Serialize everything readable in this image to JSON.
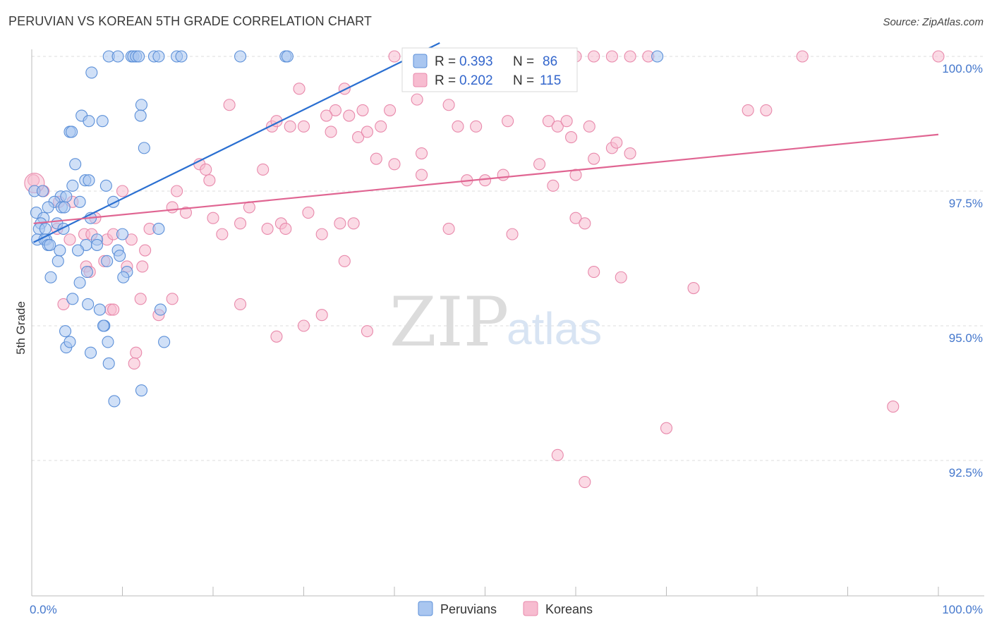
{
  "title": "PERUVIAN VS KOREAN 5TH GRADE CORRELATION CHART",
  "source": "Source: ZipAtlas.com",
  "watermark": {
    "zip": "ZIP",
    "atlas": "atlas"
  },
  "colors": {
    "peruvians_fill": "#a9c6f0",
    "peruvians_stroke": "#5b8fd8",
    "peruvians_line": "#2a6fd1",
    "koreans_fill": "#f7bcd0",
    "koreans_stroke": "#e889ab",
    "koreans_line": "#e06592",
    "grid": "#dddddd",
    "tick_text": "#4477cc"
  },
  "chart_data": {
    "type": "scatter",
    "title": "PERUVIAN VS KOREAN 5TH GRADE CORRELATION CHART",
    "xlabel": "",
    "ylabel": "5th Grade",
    "xlim": [
      0,
      100
    ],
    "ylim": [
      90.2,
      100.45
    ],
    "x_tick_labels": [
      {
        "value": 0,
        "label": "0.0%"
      },
      {
        "value": 100,
        "label": "100.0%"
      }
    ],
    "y_ticks": [
      {
        "value": 100,
        "label": "100.0%"
      },
      {
        "value": 97.5,
        "label": "97.5%"
      },
      {
        "value": 95,
        "label": "95.0%"
      },
      {
        "value": 92.5,
        "label": "92.5%"
      }
    ],
    "grid": true,
    "legend": {
      "placement": "top-center",
      "rows": [
        {
          "r_label": "R = ",
          "r_value": "0.393",
          "n_label": "N = ",
          "n_value": "86"
        },
        {
          "r_label": "R = ",
          "r_value": "0.202",
          "n_label": "N = ",
          "n_value": "115"
        }
      ]
    },
    "bottom_legend": [
      "Peruvians",
      "Koreans"
    ],
    "series": [
      {
        "name": "Peruvians",
        "trend": {
          "x0": 0.2,
          "y0": 96.55,
          "x1": 45,
          "y1": 100.25
        },
        "points": [
          [
            8.5,
            100
          ],
          [
            9.5,
            100
          ],
          [
            11,
            100
          ],
          [
            11.2,
            100
          ],
          [
            11.5,
            100
          ],
          [
            11.8,
            100
          ],
          [
            13.5,
            100
          ],
          [
            14,
            100
          ],
          [
            16,
            100
          ],
          [
            16.5,
            100
          ],
          [
            23,
            100
          ],
          [
            28,
            100
          ],
          [
            28.2,
            100
          ],
          [
            69,
            100
          ],
          [
            6.6,
            99.7
          ],
          [
            12.1,
            99.1
          ],
          [
            12,
            98.9
          ],
          [
            5.5,
            98.9
          ],
          [
            6.3,
            98.8
          ],
          [
            7.8,
            98.8
          ],
          [
            4.2,
            98.6
          ],
          [
            4.4,
            98.6
          ],
          [
            12.4,
            98.3
          ],
          [
            4.8,
            98.0
          ],
          [
            5.9,
            97.7
          ],
          [
            6.3,
            97.7
          ],
          [
            8.2,
            97.6
          ],
          [
            4.5,
            97.6
          ],
          [
            0.3,
            97.5
          ],
          [
            1.2,
            97.5
          ],
          [
            3.2,
            97.4
          ],
          [
            3.8,
            97.4
          ],
          [
            2.5,
            97.3
          ],
          [
            5.3,
            97.3
          ],
          [
            9,
            97.3
          ],
          [
            3.3,
            97.2
          ],
          [
            1.8,
            97.2
          ],
          [
            3.6,
            97.2
          ],
          [
            0.5,
            97.1
          ],
          [
            1.3,
            97.0
          ],
          [
            6.5,
            97.0
          ],
          [
            2.8,
            96.9
          ],
          [
            1,
            96.9
          ],
          [
            0.8,
            96.8
          ],
          [
            1.5,
            96.8
          ],
          [
            3.5,
            96.8
          ],
          [
            10,
            96.7
          ],
          [
            14,
            96.8
          ],
          [
            0.6,
            96.6
          ],
          [
            1.6,
            96.6
          ],
          [
            1.4,
            96.6
          ],
          [
            7.2,
            96.6
          ],
          [
            1.8,
            96.5
          ],
          [
            2,
            96.5
          ],
          [
            6,
            96.5
          ],
          [
            7.2,
            96.5
          ],
          [
            3.1,
            96.4
          ],
          [
            5.1,
            96.4
          ],
          [
            9.5,
            96.4
          ],
          [
            9.7,
            96.3
          ],
          [
            2.9,
            96.2
          ],
          [
            8.3,
            96.2
          ],
          [
            10.5,
            96.0
          ],
          [
            6.1,
            96.0
          ],
          [
            2.1,
            95.9
          ],
          [
            10.1,
            95.9
          ],
          [
            5.3,
            95.8
          ],
          [
            4.5,
            95.5
          ],
          [
            6.2,
            95.4
          ],
          [
            7.5,
            95.3
          ],
          [
            14.2,
            95.3
          ],
          [
            8,
            95.0
          ],
          [
            3.7,
            94.9
          ],
          [
            7.9,
            95.0
          ],
          [
            8.4,
            94.7
          ],
          [
            3.8,
            94.6
          ],
          [
            4.2,
            94.7
          ],
          [
            14.6,
            94.7
          ],
          [
            6.5,
            94.5
          ],
          [
            8.5,
            94.3
          ],
          [
            12.1,
            93.8
          ],
          [
            9.1,
            93.6
          ]
        ]
      },
      {
        "name": "Koreans",
        "trend": {
          "x0": 0.2,
          "y0": 96.9,
          "x1": 100,
          "y1": 98.55
        },
        "points": [
          [
            40,
            100
          ],
          [
            43,
            100
          ],
          [
            50.5,
            100
          ],
          [
            51,
            100
          ],
          [
            52,
            100
          ],
          [
            60,
            100
          ],
          [
            62,
            100
          ],
          [
            64,
            100
          ],
          [
            66,
            100
          ],
          [
            68,
            100
          ],
          [
            85,
            100
          ],
          [
            100,
            100
          ],
          [
            29.5,
            99.4
          ],
          [
            34.5,
            99.4
          ],
          [
            21.8,
            99.1
          ],
          [
            42.5,
            99.2
          ],
          [
            46,
            99.1
          ],
          [
            33.5,
            99.0
          ],
          [
            36.5,
            99.0
          ],
          [
            39.5,
            99.0
          ],
          [
            35,
            98.9
          ],
          [
            32.5,
            98.9
          ],
          [
            26.5,
            98.7
          ],
          [
            27,
            98.8
          ],
          [
            30,
            98.7
          ],
          [
            28.5,
            98.7
          ],
          [
            33,
            98.6
          ],
          [
            36,
            98.5
          ],
          [
            37,
            98.6
          ],
          [
            38.5,
            98.7
          ],
          [
            47,
            98.7
          ],
          [
            49,
            98.7
          ],
          [
            52.5,
            98.8
          ],
          [
            57,
            98.8
          ],
          [
            58,
            98.7
          ],
          [
            59,
            98.8
          ],
          [
            61.5,
            98.7
          ],
          [
            79,
            99.0
          ],
          [
            81,
            99.0
          ],
          [
            59.5,
            98.5
          ],
          [
            43,
            98.2
          ],
          [
            38,
            98.1
          ],
          [
            40,
            98.0
          ],
          [
            56,
            98.0
          ],
          [
            18.5,
            98.0
          ],
          [
            19.2,
            97.9
          ],
          [
            19.6,
            97.7
          ],
          [
            25.5,
            97.9
          ],
          [
            43,
            97.8
          ],
          [
            48,
            97.7
          ],
          [
            50,
            97.7
          ],
          [
            52,
            97.8
          ],
          [
            57.5,
            97.6
          ],
          [
            60,
            97.8
          ],
          [
            62,
            98.1
          ],
          [
            64,
            98.3
          ],
          [
            64.5,
            98.4
          ],
          [
            66,
            98.2
          ],
          [
            0.2,
            97.7
          ],
          [
            1.3,
            97.5
          ],
          [
            10,
            97.5
          ],
          [
            16,
            97.5
          ],
          [
            3,
            97.3
          ],
          [
            15.5,
            97.2
          ],
          [
            17,
            97.1
          ],
          [
            4.5,
            97.3
          ],
          [
            24,
            97.2
          ],
          [
            30.5,
            97.1
          ],
          [
            7,
            97.0
          ],
          [
            20,
            97.0
          ],
          [
            23,
            96.9
          ],
          [
            26,
            96.8
          ],
          [
            27.5,
            96.9
          ],
          [
            28,
            96.8
          ],
          [
            13,
            96.8
          ],
          [
            2.8,
            96.8
          ],
          [
            5.8,
            96.7
          ],
          [
            6.6,
            96.7
          ],
          [
            8.3,
            96.6
          ],
          [
            9,
            96.7
          ],
          [
            11,
            96.6
          ],
          [
            21,
            96.7
          ],
          [
            32,
            96.7
          ],
          [
            34,
            96.9
          ],
          [
            35.5,
            96.9
          ],
          [
            46,
            96.8
          ],
          [
            53,
            96.7
          ],
          [
            60,
            97.0
          ],
          [
            61,
            96.9
          ],
          [
            4.2,
            96.6
          ],
          [
            12.5,
            96.4
          ],
          [
            8,
            96.2
          ],
          [
            6,
            96.1
          ],
          [
            10.5,
            96.1
          ],
          [
            12.2,
            96.1
          ],
          [
            34.5,
            96.2
          ],
          [
            6.4,
            96.0
          ],
          [
            62,
            96.0
          ],
          [
            65,
            95.9
          ],
          [
            73,
            95.7
          ],
          [
            12,
            95.5
          ],
          [
            15.5,
            95.5
          ],
          [
            23,
            95.4
          ],
          [
            3.5,
            95.4
          ],
          [
            8.7,
            95.3
          ],
          [
            9,
            95.3
          ],
          [
            14,
            95.2
          ],
          [
            32,
            95.2
          ],
          [
            30,
            95.0
          ],
          [
            37,
            94.9
          ],
          [
            27,
            94.8
          ],
          [
            11.5,
            94.5
          ],
          [
            11.3,
            94.3
          ],
          [
            95,
            93.5
          ],
          [
            70,
            93.1
          ],
          [
            58,
            92.6
          ],
          [
            61,
            92.1
          ]
        ]
      }
    ]
  }
}
